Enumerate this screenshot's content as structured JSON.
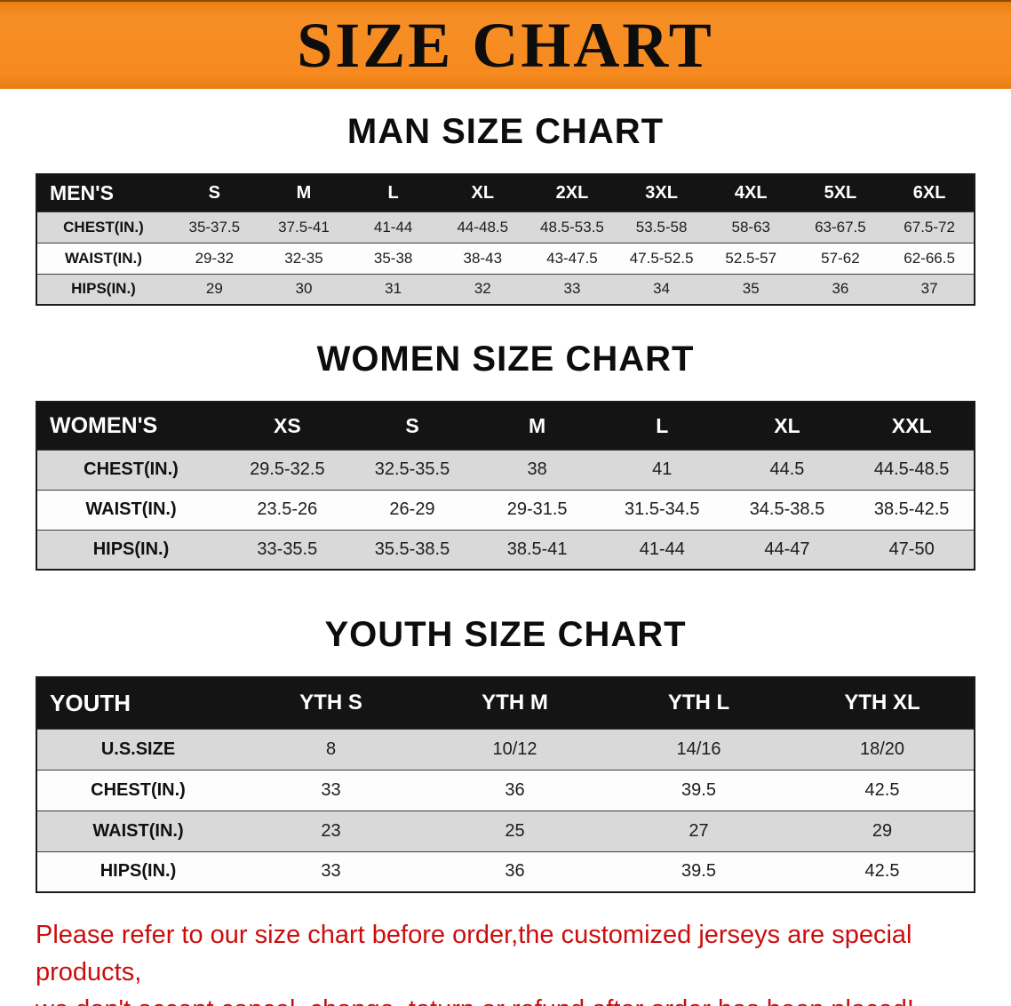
{
  "banner": {
    "title": "SIZE CHART"
  },
  "colors": {
    "banner_bg": "#f68a1f",
    "header_row_bg": "#141414",
    "alt_row_bg": "#d9d9d9",
    "disclaimer_text": "#cc0d0d"
  },
  "sections": [
    {
      "heading": "MAN SIZE CHART",
      "header_label": "MEN'S",
      "columns": [
        "S",
        "M",
        "L",
        "XL",
        "2XL",
        "3XL",
        "4XL",
        "5XL",
        "6XL"
      ],
      "rows": [
        {
          "label": "CHEST(IN.)",
          "values": [
            "35-37.5",
            "37.5-41",
            "41-44",
            "44-48.5",
            "48.5-53.5",
            "53.5-58",
            "58-63",
            "63-67.5",
            "67.5-72"
          ]
        },
        {
          "label": "WAIST(IN.)",
          "values": [
            "29-32",
            "32-35",
            "35-38",
            "38-43",
            "43-47.5",
            "47.5-52.5",
            "52.5-57",
            "57-62",
            "62-66.5"
          ]
        },
        {
          "label": "HIPS(IN.)",
          "values": [
            "29",
            "30",
            "31",
            "32",
            "33",
            "34",
            "35",
            "36",
            "37"
          ]
        }
      ]
    },
    {
      "heading": "WOMEN SIZE CHART",
      "header_label": "WOMEN'S",
      "columns": [
        "XS",
        "S",
        "M",
        "L",
        "XL",
        "XXL"
      ],
      "rows": [
        {
          "label": "CHEST(IN.)",
          "values": [
            "29.5-32.5",
            "32.5-35.5",
            "38",
            "41",
            "44.5",
            "44.5-48.5"
          ]
        },
        {
          "label": "WAIST(IN.)",
          "values": [
            "23.5-26",
            "26-29",
            "29-31.5",
            "31.5-34.5",
            "34.5-38.5",
            "38.5-42.5"
          ]
        },
        {
          "label": "HIPS(IN.)",
          "values": [
            "33-35.5",
            "35.5-38.5",
            "38.5-41",
            "41-44",
            "44-47",
            "47-50"
          ]
        }
      ]
    },
    {
      "heading": "YOUTH SIZE CHART",
      "header_label": "YOUTH",
      "columns": [
        "YTH S",
        "YTH M",
        "YTH L",
        "YTH XL"
      ],
      "rows": [
        {
          "label": "U.S.SIZE",
          "values": [
            "8",
            "10/12",
            "14/16",
            "18/20"
          ]
        },
        {
          "label": "CHEST(IN.)",
          "values": [
            "33",
            "36",
            "39.5",
            "42.5"
          ]
        },
        {
          "label": "WAIST(IN.)",
          "values": [
            "23",
            "25",
            "27",
            "29"
          ]
        },
        {
          "label": "HIPS(IN.)",
          "values": [
            "33",
            "36",
            "39.5",
            "42.5"
          ]
        }
      ]
    }
  ],
  "disclaimer": {
    "lines": [
      "Please refer to our size chart before order,the customized jerseys are special products,",
      "we don't accept cancel, change, teturn or refund after order has been placed!"
    ]
  }
}
